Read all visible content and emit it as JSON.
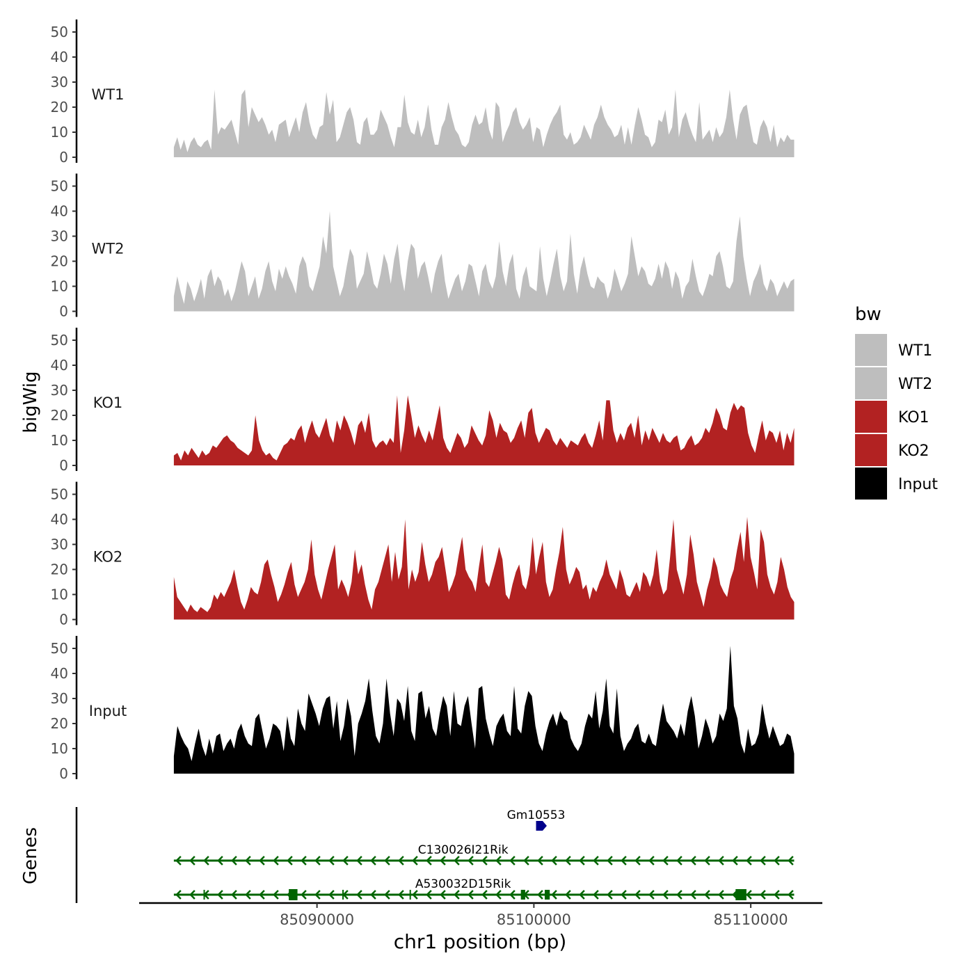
{
  "chart_data": {
    "type": "area",
    "description_source": "genomic coverage tracks with gene annotation",
    "xlabel": "chr1 position (bp)",
    "ylabel": "bigWig",
    "genes_label": "Genes",
    "x_ticks": [
      "85090000",
      "85100000",
      "85110000"
    ],
    "x_tick_values": [
      85090000,
      85100000,
      85110000
    ],
    "xlim": [
      85081800,
      85113300
    ],
    "data_xrange": [
      85083400,
      85112000
    ],
    "ylim": [
      0,
      55
    ],
    "y_ticks": [
      "0",
      "10",
      "20",
      "30",
      "40",
      "50"
    ],
    "y_tick_values": [
      0,
      10,
      20,
      30,
      40,
      50
    ],
    "legend": {
      "title": "bw",
      "position": "right",
      "entries": [
        {
          "label": "WT1",
          "color": "#bebebe"
        },
        {
          "label": "WT2",
          "color": "#bebebe"
        },
        {
          "label": "KO1",
          "color": "#b22222"
        },
        {
          "label": "KO2",
          "color": "#b22222"
        },
        {
          "label": "Input",
          "color": "#000000"
        }
      ]
    },
    "series": [
      {
        "name": "WT1",
        "color": "#bebebe",
        "values": [
          4,
          8,
          3,
          7,
          2,
          6,
          8,
          5,
          4,
          6,
          7,
          3,
          5,
          9,
          12,
          11,
          13,
          15,
          10,
          5,
          14,
          27,
          12,
          20,
          17,
          14,
          16,
          13,
          9,
          11,
          6,
          13,
          14,
          15,
          8,
          12,
          16,
          10,
          18,
          22,
          14,
          9,
          7,
          12,
          13,
          26,
          17,
          12,
          6,
          8,
          13,
          18,
          20,
          15,
          6,
          5,
          14,
          16,
          9,
          9,
          11,
          19,
          16,
          13,
          8,
          4,
          12,
          12,
          25,
          14,
          10,
          9,
          15,
          8,
          12,
          21,
          11,
          5,
          5,
          12,
          15,
          22,
          16,
          11,
          9,
          5,
          4,
          6,
          13,
          17,
          13,
          14,
          20,
          11,
          7,
          15,
          20,
          6,
          10,
          13,
          18,
          20,
          14,
          11,
          13,
          16,
          6,
          12,
          11,
          4,
          9,
          13,
          16,
          18,
          21,
          9,
          7,
          10,
          5,
          6,
          8,
          13,
          10,
          7,
          13,
          16,
          21,
          16,
          13,
          11,
          8,
          9,
          13,
          5,
          12,
          5,
          13,
          20,
          15,
          9,
          8,
          4,
          6,
          15,
          14,
          19,
          9,
          12,
          10,
          8,
          15,
          18,
          13,
          9,
          6,
          5,
          7,
          9,
          11,
          6,
          12,
          8,
          10,
          16,
          27,
          15,
          7,
          17,
          20,
          21,
          13,
          6,
          5,
          12,
          15,
          12,
          6,
          13,
          4,
          8,
          6,
          9,
          7,
          7
        ],
        "peaks": [
          [
            85085200,
            27
          ],
          [
            85086500,
            25
          ],
          [
            85090800,
            23
          ],
          [
            85094000,
            25
          ],
          [
            85098300,
            22
          ],
          [
            85106500,
            27
          ],
          [
            85107700,
            22
          ]
        ]
      },
      {
        "name": "WT2",
        "color": "#bebebe",
        "values": [
          6,
          14,
          8,
          3,
          12,
          9,
          4,
          8,
          13,
          5,
          14,
          17,
          10,
          14,
          12,
          6,
          9,
          4,
          8,
          14,
          20,
          16,
          6,
          10,
          14,
          5,
          9,
          16,
          20,
          12,
          8,
          17,
          13,
          18,
          14,
          11,
          7,
          18,
          22,
          19,
          10,
          8,
          13,
          18,
          30,
          23,
          40,
          18,
          12,
          6,
          10,
          18,
          25,
          22,
          9,
          12,
          15,
          24,
          18,
          11,
          9,
          15,
          23,
          19,
          11,
          21,
          27,
          15,
          8,
          20,
          27,
          25,
          13,
          18,
          20,
          14,
          7,
          15,
          20,
          23,
          12,
          5,
          9,
          13,
          15,
          8,
          12,
          19,
          18,
          12,
          6,
          16,
          19,
          12,
          9,
          14,
          28,
          16,
          10,
          19,
          23,
          9,
          5,
          14,
          18,
          10,
          9,
          8,
          26,
          13,
          6,
          12,
          19,
          25,
          14,
          8,
          12,
          31,
          15,
          7,
          17,
          22,
          15,
          10,
          9,
          14,
          12,
          11,
          5,
          9,
          17,
          13,
          8,
          11,
          15,
          30,
          22,
          14,
          18,
          16,
          11,
          10,
          13,
          19,
          13,
          20,
          17,
          9,
          16,
          13,
          5,
          10,
          12,
          21,
          14,
          8,
          6,
          10,
          15,
          14,
          22,
          24,
          18,
          10,
          9,
          12,
          28,
          38,
          22,
          13,
          6,
          12,
          15,
          19,
          11,
          8,
          13,
          11,
          6,
          9,
          12,
          9,
          12,
          13
        ]
      },
      {
        "name": "KO1",
        "color": "#b22222",
        "values": [
          4,
          5,
          2,
          6,
          4,
          7,
          5,
          3,
          6,
          4,
          5,
          8,
          7,
          9,
          11,
          12,
          10,
          9,
          7,
          6,
          5,
          4,
          6,
          20,
          10,
          6,
          4,
          5,
          3,
          2,
          5,
          8,
          9,
          11,
          10,
          14,
          16,
          9,
          14,
          18,
          13,
          11,
          15,
          19,
          12,
          9,
          18,
          14,
          20,
          17,
          13,
          8,
          16,
          18,
          13,
          21,
          10,
          7,
          9,
          10,
          8,
          11,
          9,
          6,
          5,
          14,
          28,
          20,
          11,
          16,
          12,
          9,
          14,
          10,
          17,
          24,
          11,
          7,
          5,
          9,
          13,
          11,
          7,
          9,
          16,
          13,
          10,
          8,
          12,
          15,
          18,
          11,
          17,
          14,
          13,
          9,
          11,
          15,
          18,
          11,
          21,
          23,
          13,
          9,
          12,
          15,
          14,
          10,
          8,
          11,
          9,
          7,
          10,
          9,
          8,
          11,
          13,
          9,
          7,
          12,
          18,
          10,
          14,
          26,
          14,
          9,
          13,
          10,
          15,
          17,
          11,
          20,
          8,
          14,
          10,
          15,
          12,
          9,
          13,
          10,
          9,
          11,
          12,
          6,
          7,
          10,
          12,
          8,
          9,
          11,
          15,
          13,
          17,
          23,
          20,
          15,
          14,
          21,
          18,
          22,
          24,
          23,
          13,
          8,
          5,
          12,
          18,
          10,
          14,
          13,
          9,
          14,
          6,
          13,
          9,
          15
        ],
        "peaks": [
          [
            85093700,
            28
          ],
          [
            85098000,
            22
          ],
          [
            85103400,
            26
          ],
          [
            85109300,
            25
          ]
        ]
      },
      {
        "name": "KO2",
        "color": "#b22222",
        "values": [
          17,
          9,
          7,
          5,
          3,
          6,
          4,
          3,
          5,
          4,
          3,
          5,
          10,
          8,
          11,
          9,
          12,
          15,
          20,
          13,
          7,
          4,
          8,
          13,
          11,
          10,
          15,
          22,
          24,
          18,
          13,
          7,
          10,
          14,
          19,
          23,
          14,
          9,
          12,
          15,
          20,
          32,
          18,
          12,
          8,
          14,
          20,
          25,
          30,
          12,
          16,
          13,
          9,
          15,
          28,
          18,
          22,
          14,
          8,
          4,
          12,
          15,
          20,
          25,
          30,
          15,
          27,
          16,
          21,
          40,
          12,
          20,
          15,
          19,
          31,
          22,
          15,
          18,
          23,
          25,
          29,
          20,
          11,
          14,
          18,
          26,
          33,
          20,
          17,
          15,
          11,
          21,
          30,
          15,
          13,
          18,
          23,
          29,
          24,
          10,
          8,
          14,
          19,
          22,
          14,
          12,
          18,
          33,
          18,
          25,
          31,
          15,
          9,
          12,
          20,
          27,
          37,
          20,
          14,
          17,
          21,
          19,
          12,
          14,
          8,
          13,
          11,
          15,
          18,
          24,
          18,
          15,
          12,
          20,
          16,
          10,
          9,
          12,
          15,
          11,
          19,
          17,
          13,
          18,
          28,
          15,
          10,
          12,
          25,
          40,
          20,
          15,
          10,
          18,
          34,
          26,
          15,
          10,
          5,
          12,
          17,
          25,
          21,
          14,
          11,
          9,
          16,
          20,
          28,
          35,
          23,
          41,
          25,
          19,
          12,
          36,
          31,
          18,
          13,
          10,
          15,
          25,
          20,
          13,
          9,
          7
        ]
      },
      {
        "name": "Input",
        "color": "#000000",
        "values": [
          7,
          19,
          15,
          12,
          10,
          5,
          12,
          18,
          11,
          7,
          14,
          8,
          15,
          16,
          9,
          12,
          14,
          10,
          17,
          20,
          15,
          12,
          11,
          22,
          24,
          17,
          10,
          14,
          20,
          19,
          17,
          9,
          23,
          14,
          11,
          26,
          20,
          17,
          32,
          28,
          24,
          19,
          26,
          30,
          31,
          18,
          29,
          13,
          19,
          30,
          23,
          7,
          20,
          24,
          29,
          38,
          25,
          15,
          12,
          20,
          38,
          24,
          15,
          30,
          28,
          21,
          35,
          17,
          13,
          32,
          33,
          22,
          27,
          18,
          15,
          24,
          31,
          27,
          15,
          33,
          20,
          19,
          27,
          31,
          20,
          10,
          34,
          35,
          22,
          16,
          11,
          19,
          22,
          24,
          17,
          15,
          35,
          18,
          16,
          27,
          33,
          31,
          19,
          12,
          9,
          16,
          21,
          24,
          19,
          25,
          22,
          21,
          14,
          11,
          9,
          12,
          19,
          24,
          22,
          33,
          18,
          25,
          38,
          19,
          16,
          34,
          15,
          9,
          12,
          14,
          18,
          20,
          13,
          12,
          16,
          12,
          11,
          20,
          28,
          21,
          19,
          17,
          14,
          20,
          15,
          25,
          31,
          23,
          10,
          15,
          22,
          18,
          12,
          15,
          24,
          21,
          26,
          51,
          27,
          22,
          12,
          8,
          18,
          11,
          12,
          16,
          28,
          20,
          14,
          19,
          15,
          11,
          12,
          16,
          15,
          8
        ]
      }
    ],
    "genes": [
      {
        "name": "Gm10553",
        "color": "#00008b",
        "row": 0,
        "start": 85100100,
        "end": 85100500,
        "strand": "+",
        "exons": [
          [
            85100100,
            85100500
          ]
        ]
      },
      {
        "name": "C130026I21Rik",
        "color": "#006400",
        "row": 1,
        "start": 85083400,
        "end": 85112000,
        "strand": "-",
        "exons": []
      },
      {
        "name": "A530032D15Rik",
        "color": "#006400",
        "row": 2,
        "start": 85083400,
        "end": 85112000,
        "strand": "-",
        "exons": [
          [
            85088700,
            85089100
          ],
          [
            85099400,
            85099600
          ],
          [
            85100500,
            85100700
          ],
          [
            85109300,
            85109800
          ]
        ]
      }
    ]
  }
}
